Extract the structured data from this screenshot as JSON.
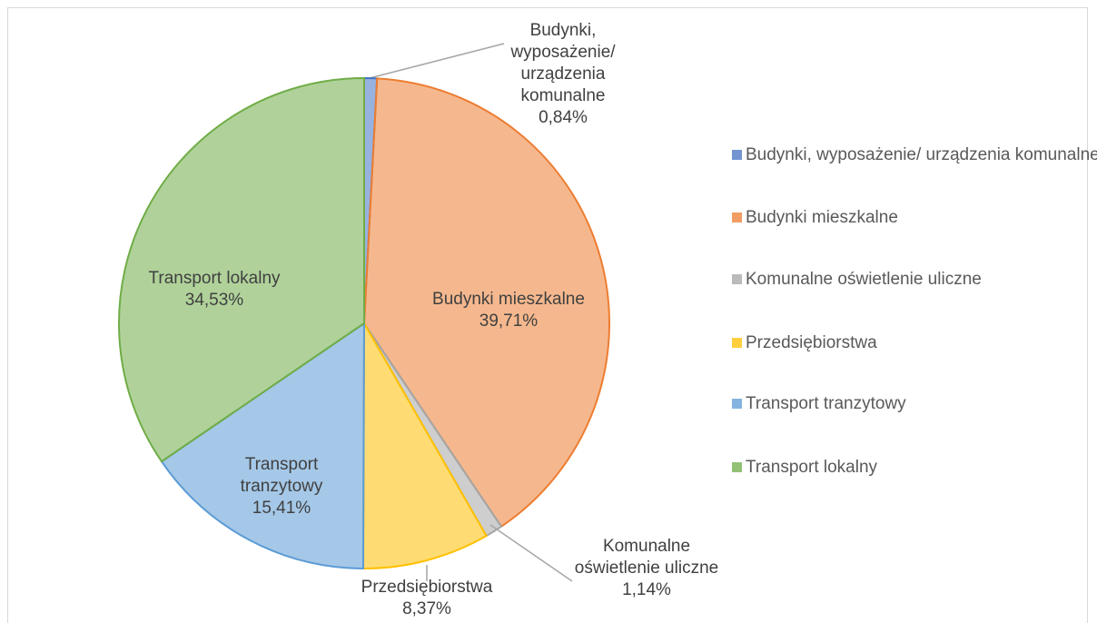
{
  "chart_data": {
    "type": "pie",
    "categories": [
      "Budynki, wyposażenie/ urządzenia komunalne",
      "Budynki mieszkalne",
      "Komunalne oświetlenie uliczne",
      "Przedsiębiorstwa",
      "Transport tranzytowy",
      "Transport lokalny"
    ],
    "values": [
      0.84,
      39.71,
      1.14,
      8.37,
      15.41,
      34.53
    ],
    "value_labels": [
      "0,84%",
      "39,71%",
      "1,14%",
      "8,37%",
      "15,41%",
      "34,53%"
    ],
    "colors": [
      "#4472c4",
      "#ed7d31",
      "#a5a5a5",
      "#ffc000",
      "#5b9bd5",
      "#70ad47"
    ],
    "legend": "right"
  }
}
